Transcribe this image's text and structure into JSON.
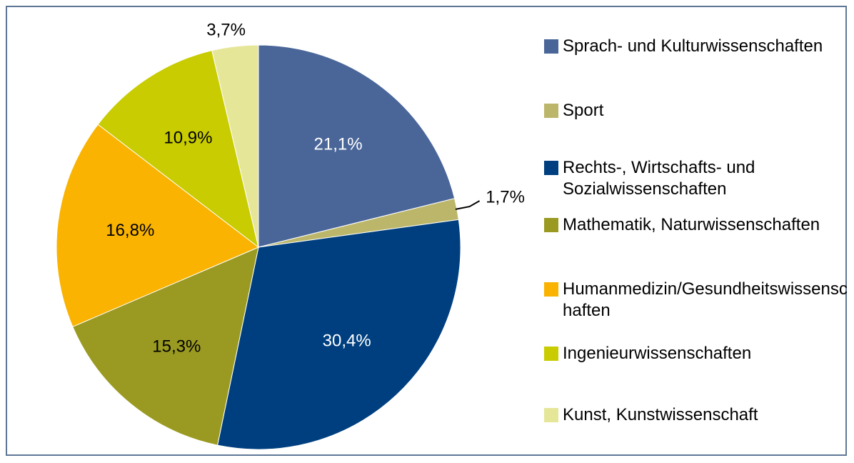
{
  "chart_data": {
    "type": "pie",
    "categories": [
      "Sprach- und Kulturwissenschaften",
      "Sport",
      "Rechts-, Wirtschafts- und Sozialwissenschaften",
      "Mathematik, Naturwissenschaften",
      "Humanmedizin/Gesundheitswissenschaften",
      "Ingenieurwissenschaften",
      "Kunst, Kunstwissenschaft"
    ],
    "values": [
      21.1,
      1.7,
      30.4,
      15.3,
      16.8,
      10.9,
      3.7
    ],
    "value_labels": [
      "21,1%",
      "1,7%",
      "30,4%",
      "15,3%",
      "16,8%",
      "10,9%",
      "3,7%"
    ],
    "colors": [
      "#4a6699",
      "#bcb66a",
      "#003f7f",
      "#9a9a22",
      "#f9b300",
      "#c8cc00",
      "#e6e699"
    ]
  }
}
